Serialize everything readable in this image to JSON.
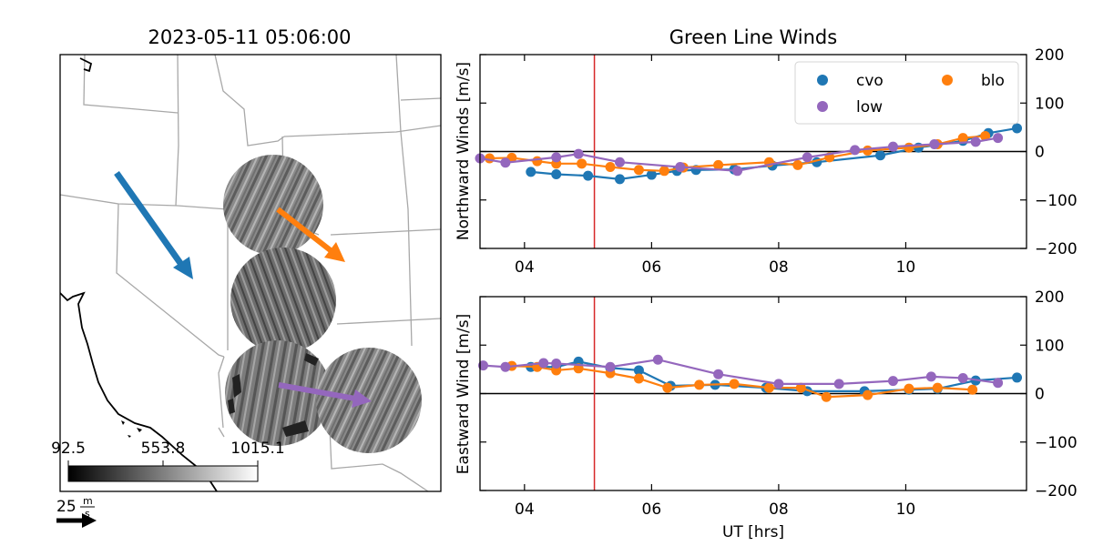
{
  "map_panel": {
    "title": "2023-05-11 05:06:00",
    "colorbar": {
      "ticks": [
        "92.5",
        "553.8",
        "1015.1"
      ],
      "cmap": "greyscale (black to white)"
    },
    "scale_arrow": {
      "value": "25",
      "unit_num": "m",
      "unit_den": "s"
    },
    "arrows": [
      {
        "site": "cvo",
        "color": "#1f77b4"
      },
      {
        "site": "blo",
        "color": "#ff7f0e"
      },
      {
        "site": "low",
        "color": "#9467bd"
      }
    ]
  },
  "wind_panels": {
    "title": "Green Line Winds",
    "xlabel": "UT [hrs]"
  },
  "chart_data": [
    {
      "type": "line",
      "title": "Green Line Winds",
      "ylabel": "Northward Winds [m/s]",
      "xlim": [
        3.3,
        11.9
      ],
      "ylim": [
        -200,
        200
      ],
      "xticks": [
        4,
        6,
        8,
        10
      ],
      "xticklabels": [
        "04",
        "06",
        "08",
        "10"
      ],
      "yticks": [
        200,
        100,
        0,
        -100,
        -200
      ],
      "yticklabels": [
        "200",
        "100",
        "0",
        "−100",
        "−200"
      ],
      "y_axis_side": "right",
      "grid": false,
      "hline": 0,
      "vline": 5.1,
      "legend": {
        "location": "top-right",
        "ncol": 2
      },
      "series": [
        {
          "name": "cvo",
          "color": "#1f77b4",
          "x": [
            4.1,
            4.5,
            5.0,
            5.5,
            6.0,
            6.4,
            6.7,
            7.3,
            7.9,
            8.6,
            9.6,
            10.2,
            10.9,
            11.3,
            11.75
          ],
          "y": [
            -42,
            -47,
            -50,
            -57,
            -48,
            -40,
            -38,
            -37,
            -29,
            -22,
            -8,
            8,
            22,
            38,
            48
          ]
        },
        {
          "name": "blo",
          "color": "#ff7f0e",
          "x": [
            3.45,
            3.8,
            4.2,
            4.5,
            4.9,
            5.35,
            5.8,
            6.2,
            6.5,
            7.05,
            7.85,
            8.3,
            8.8,
            9.4,
            10.05,
            10.5,
            10.9,
            11.25
          ],
          "y": [
            -14,
            -13,
            -20,
            -25,
            -25,
            -32,
            -38,
            -40,
            -33,
            -28,
            -22,
            -28,
            -12,
            2,
            8,
            15,
            28,
            32
          ]
        },
        {
          "name": "low",
          "color": "#9467bd",
          "x": [
            3.3,
            3.7,
            4.5,
            4.85,
            5.5,
            6.45,
            7.35,
            8.45,
            9.2,
            9.8,
            10.45,
            11.1,
            11.45
          ],
          "y": [
            -14,
            -23,
            -12,
            -5,
            -22,
            -32,
            -40,
            -12,
            3,
            10,
            15,
            20,
            28
          ]
        }
      ]
    },
    {
      "type": "line",
      "ylabel": "Eastward Wind [m/s]",
      "xlim": [
        3.3,
        11.9
      ],
      "ylim": [
        -200,
        200
      ],
      "xticks": [
        4,
        6,
        8,
        10
      ],
      "xticklabels": [
        "04",
        "06",
        "08",
        "10"
      ],
      "yticks": [
        200,
        100,
        0,
        -100,
        -200
      ],
      "yticklabels": [
        "200",
        "100",
        "0",
        "−100",
        "−200"
      ],
      "y_axis_side": "right",
      "grid": false,
      "hline": 0,
      "vline": 5.1,
      "series": [
        {
          "name": "cvo",
          "color": "#1f77b4",
          "x": [
            4.1,
            4.5,
            4.85,
            5.35,
            5.8,
            6.3,
            7.0,
            7.8,
            8.45,
            9.35,
            10.05,
            10.5,
            11.1,
            11.75
          ],
          "y": [
            55,
            55,
            66,
            53,
            48,
            16,
            18,
            12,
            5,
            5,
            8,
            10,
            27,
            33
          ]
        },
        {
          "name": "blo",
          "color": "#ff7f0e",
          "x": [
            3.8,
            4.2,
            4.5,
            4.85,
            5.35,
            5.8,
            6.25,
            6.75,
            7.3,
            7.85,
            8.35,
            8.75,
            9.4,
            10.05,
            10.5,
            11.05
          ],
          "y": [
            57,
            55,
            48,
            52,
            42,
            31,
            12,
            18,
            20,
            12,
            12,
            -7,
            -3,
            10,
            12,
            8
          ]
        },
        {
          "name": "low",
          "color": "#9467bd",
          "x": [
            3.35,
            3.7,
            4.3,
            4.5,
            5.35,
            6.1,
            7.05,
            8.0,
            8.95,
            9.8,
            10.4,
            10.9,
            11.45
          ],
          "y": [
            58,
            55,
            63,
            62,
            55,
            70,
            40,
            20,
            20,
            26,
            35,
            32,
            22
          ]
        }
      ]
    }
  ]
}
